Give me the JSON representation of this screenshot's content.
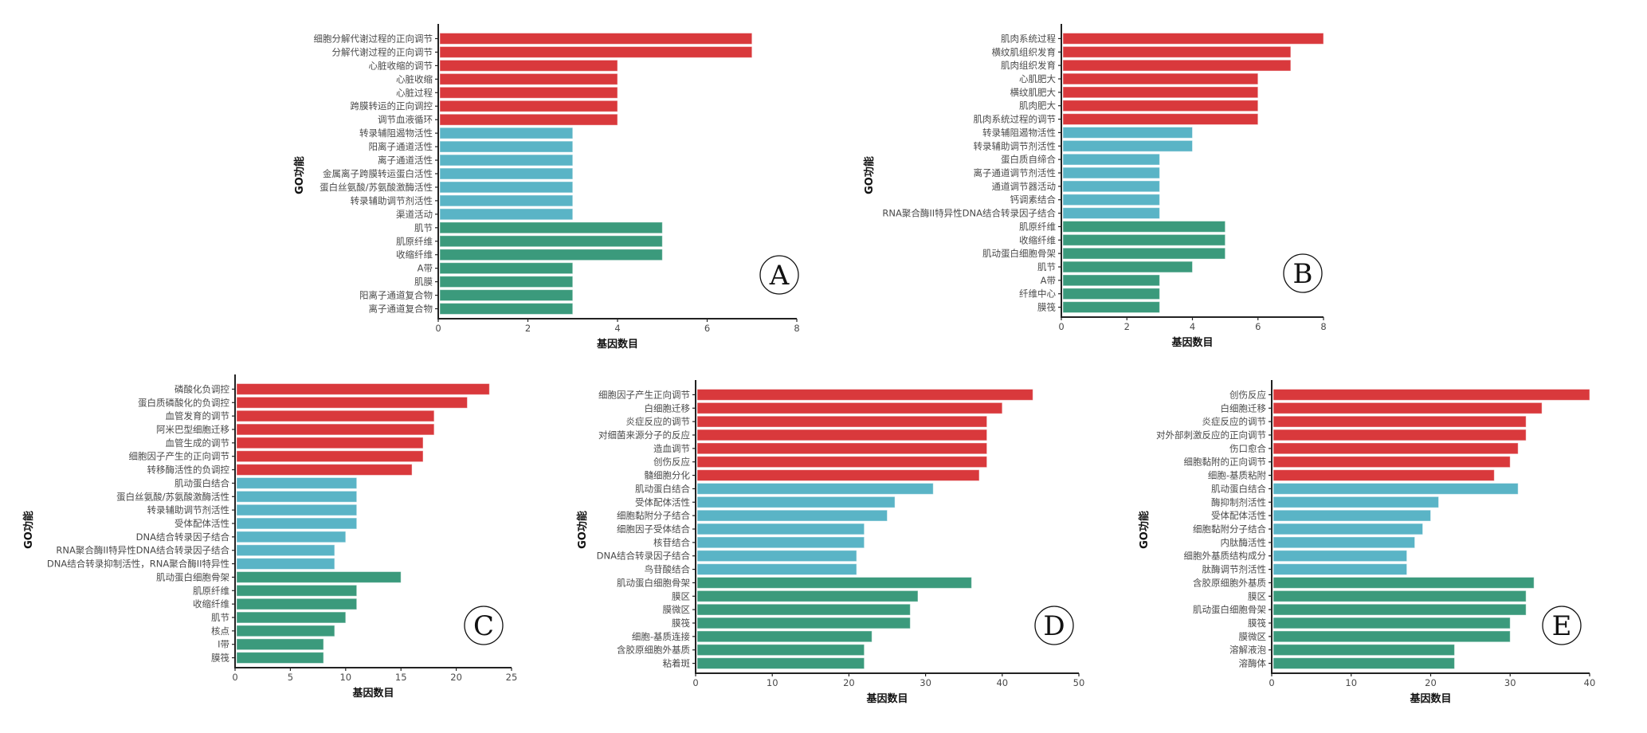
{
  "colors": {
    "group1": "#d9393c",
    "group2": "#5ab4c6",
    "group3": "#3b9a7c",
    "axis": "#222222"
  },
  "chart_data": [
    {
      "type": "bar",
      "orientation": "horizontal",
      "panel": "A",
      "xlabel": "基因数目",
      "ylabel": "GO功能",
      "xlim": [
        0,
        8
      ],
      "xticks": [
        "0",
        "2",
        "4",
        "6",
        "8"
      ],
      "categories": [
        "细胞分解代谢过程的正向调节",
        "分解代谢过程的正向调节",
        "心脏收缩的调节",
        "心脏收缩",
        "心脏过程",
        "跨膜转运的正向调控",
        "调节血液循环",
        "转录辅阻遏物活性",
        "阳离子通道活性",
        "离子通道活性",
        "金属离子跨膜转运蛋白活性",
        "蛋白丝氨酸/苏氨酸激酶活性",
        "转录辅助调节剂活性",
        "渠道活动",
        "肌节",
        "肌原纤维",
        "收缩纤维",
        "A带",
        "肌膜",
        "阳离子通道复合物",
        "离子通道复合物"
      ],
      "values": [
        7,
        7,
        4,
        4,
        4,
        4,
        4,
        3,
        3,
        3,
        3,
        3,
        3,
        3,
        5,
        5,
        5,
        3,
        3,
        3,
        3
      ],
      "groups": [
        1,
        1,
        1,
        1,
        1,
        1,
        1,
        2,
        2,
        2,
        2,
        2,
        2,
        2,
        3,
        3,
        3,
        3,
        3,
        3,
        3
      ]
    },
    {
      "type": "bar",
      "orientation": "horizontal",
      "panel": "B",
      "xlabel": "基因数目",
      "ylabel": "GO功能",
      "xlim": [
        0,
        8
      ],
      "xticks": [
        "0",
        "2",
        "4",
        "6",
        "8"
      ],
      "categories": [
        "肌肉系统过程",
        "横纹肌组织发育",
        "肌肉组织发育",
        "心肌肥大",
        "横纹肌肥大",
        "肌肉肥大",
        "肌肉系统过程的调节",
        "转录辅阻遏物活性",
        "转录辅助调节剂活性",
        "蛋白质自缔合",
        "离子通道调节剂活性",
        "通道调节器活动",
        "钙调素结合",
        "RNA聚合酶II特异性DNA结合转录因子结合",
        "肌原纤维",
        "收缩纤维",
        "肌动蛋白细胞骨架",
        "肌节",
        "A带",
        "纤维中心",
        "膜筏"
      ],
      "values": [
        8,
        7,
        7,
        6,
        6,
        6,
        6,
        4,
        4,
        3,
        3,
        3,
        3,
        3,
        5,
        5,
        5,
        4,
        3,
        3,
        3
      ],
      "groups": [
        1,
        1,
        1,
        1,
        1,
        1,
        1,
        2,
        2,
        2,
        2,
        2,
        2,
        2,
        3,
        3,
        3,
        3,
        3,
        3,
        3
      ]
    },
    {
      "type": "bar",
      "orientation": "horizontal",
      "panel": "C",
      "xlabel": "基因数目",
      "ylabel": "GO功能",
      "xlim": [
        0,
        25
      ],
      "xticks": [
        "0",
        "5",
        "10",
        "15",
        "20",
        "25"
      ],
      "categories": [
        "磷酸化负调控",
        "蛋白质磷酸化的负调控",
        "血管发育的调节",
        "阿米巴型细胞迁移",
        "血管生成的调节",
        "细胞因子产生的正向调节",
        "转移酶活性的负调控",
        "肌动蛋白结合",
        "蛋白丝氨酸/苏氨酸激酶活性",
        "转录辅助调节剂活性",
        "受体配体活性",
        "DNA结合转录因子结合",
        "RNA聚合酶II特异性DNA结合转录因子结合",
        "DNA结合转录抑制活性，RNA聚合酶II特异性",
        "肌动蛋白细胞骨架",
        "肌原纤维",
        "收缩纤维",
        "肌节",
        "核点",
        "I带",
        "膜筏"
      ],
      "values": [
        23,
        21,
        18,
        18,
        17,
        17,
        16,
        11,
        11,
        11,
        11,
        10,
        9,
        9,
        15,
        11,
        11,
        10,
        9,
        8,
        8
      ],
      "groups": [
        1,
        1,
        1,
        1,
        1,
        1,
        1,
        2,
        2,
        2,
        2,
        2,
        2,
        2,
        3,
        3,
        3,
        3,
        3,
        3,
        3
      ]
    },
    {
      "type": "bar",
      "orientation": "horizontal",
      "panel": "D",
      "xlabel": "基因数目",
      "ylabel": "GO功能",
      "xlim": [
        0,
        50
      ],
      "xticks": [
        "0",
        "10",
        "20",
        "30",
        "40",
        "50"
      ],
      "categories": [
        "细胞因子产生正向调节",
        "白细胞迁移",
        "炎症反应的调节",
        "对细菌来源分子的反应",
        "造血调节",
        "创伤反应",
        "髓细胞分化",
        "肌动蛋白结合",
        "受体配体活性",
        "细胞黏附分子结合",
        "细胞因子受体结合",
        "核苷结合",
        "DNA结合转录因子结合",
        "鸟苷酸结合",
        "肌动蛋白细胞骨架",
        "膜区",
        "膜微区",
        "膜筏",
        "细胞-基质连接",
        "含胶原细胞外基质",
        "粘着斑"
      ],
      "values": [
        44,
        40,
        38,
        38,
        38,
        38,
        37,
        31,
        26,
        25,
        22,
        22,
        21,
        21,
        36,
        29,
        28,
        28,
        23,
        22,
        22
      ],
      "groups": [
        1,
        1,
        1,
        1,
        1,
        1,
        1,
        2,
        2,
        2,
        2,
        2,
        2,
        2,
        3,
        3,
        3,
        3,
        3,
        3,
        3
      ]
    },
    {
      "type": "bar",
      "orientation": "horizontal",
      "panel": "E",
      "xlabel": "基因数目",
      "ylabel": "GO功能",
      "xlim": [
        0,
        40
      ],
      "xticks": [
        "0",
        "10",
        "20",
        "30",
        "40"
      ],
      "categories": [
        "创伤反应",
        "白细胞迁移",
        "炎症反应的调节",
        "对外部刺激反应的正向调节",
        "伤口愈合",
        "细胞黏附的正向调节",
        "细胞-基质粘附",
        "肌动蛋白结合",
        "酶抑制剂活性",
        "受体配体活性",
        "细胞黏附分子结合",
        "内肽酶活性",
        "细胞外基质结构成分",
        "肽酶调节剂活性",
        "含胶原细胞外基质",
        "膜区",
        "肌动蛋白细胞骨架",
        "膜筏",
        "膜微区",
        "溶解液泡",
        "溶酶体"
      ],
      "values": [
        40,
        34,
        32,
        32,
        31,
        30,
        28,
        31,
        21,
        20,
        19,
        18,
        17,
        17,
        33,
        32,
        32,
        30,
        30,
        23,
        23
      ],
      "groups": [
        1,
        1,
        1,
        1,
        1,
        1,
        1,
        2,
        2,
        2,
        2,
        2,
        2,
        2,
        3,
        3,
        3,
        3,
        3,
        3,
        3
      ]
    }
  ]
}
